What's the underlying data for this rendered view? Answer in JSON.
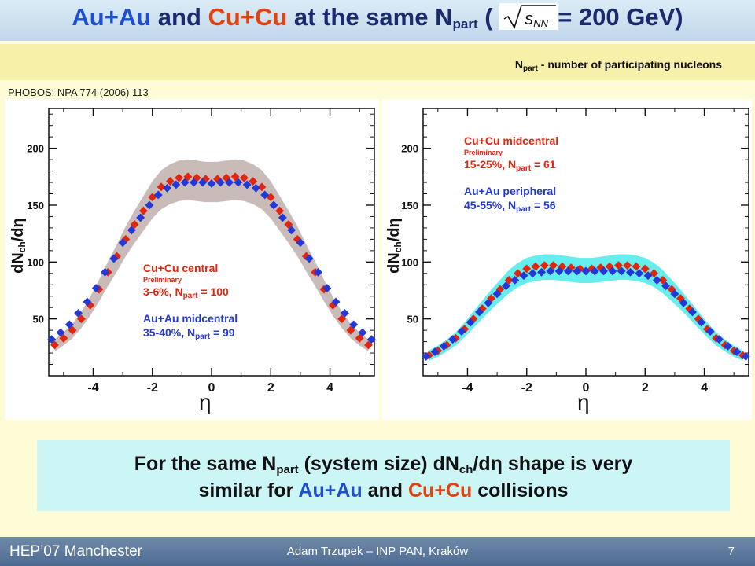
{
  "header": {
    "title_pre": "Au+Au",
    "title_and": "and",
    "title_cu": "Cu+Cu",
    "title_mid": "at the same N",
    "title_sub": "part",
    "title_paren": "(",
    "sqrt_s": "s",
    "sqrt_sub": "NN",
    "title_energy": "= 200 GeV)",
    "npart_note_n": "N",
    "npart_note_sub": "part",
    "npart_note_rest": "- number of participating nucleons",
    "source": "PHOBOS: NPA 774 (2006) 113"
  },
  "left_plot": {
    "ylabel_main": "dN",
    "ylabel_sub": "ch",
    "ylabel_tail": "/dη",
    "xlabel": "η",
    "legend": {
      "red_title": "Cu+Cu central",
      "prelim": "Preliminary",
      "red_cent": "3-6%, N",
      "red_npart_sub": "part",
      "red_npart_val": "= 100",
      "blue_title": "Au+Au midcentral",
      "blue_cent": "35-40%, N",
      "blue_npart_sub": "part",
      "blue_npart_val": "= 99"
    }
  },
  "right_plot": {
    "ylabel_main": "dN",
    "ylabel_sub": "ch",
    "ylabel_tail": "/dη",
    "xlabel": "η",
    "legend": {
      "red_title": "Cu+Cu midcentral",
      "prelim": "Preliminary",
      "red_cent": "15-25%, N",
      "red_npart_sub": "part",
      "red_npart_val": "= 61",
      "blue_title": "Au+Au peripheral",
      "blue_cent": "45-55%, N",
      "blue_npart_sub": "part",
      "blue_npart_val": "= 56"
    }
  },
  "conclusion": {
    "l1_a": "For the same N",
    "l1_sub": "part",
    "l1_b": "(system size) dN",
    "l1_sub2": "ch",
    "l1_c": "/dη shape is very",
    "l2_a": "similar for",
    "l2_au": "Au+Au",
    "l2_and": "and",
    "l2_cu": "Cu+Cu",
    "l2_b": "collisions"
  },
  "footer": {
    "left": "HEP’07 Manchester",
    "center": "Adam Trzupek – INP PAN, Kraków",
    "page": "7"
  },
  "colors": {
    "cu_red": "#e2250f",
    "au_blue": "#2338d6",
    "band_left": "#c9bcb8",
    "band_right": "#66eeee"
  },
  "chart_data": [
    {
      "type": "scatter",
      "xlim": [
        -5.5,
        5.5
      ],
      "ylim": [
        0,
        235
      ],
      "xticks": [
        -4,
        -2,
        0,
        2,
        4
      ],
      "yticks": [
        50,
        100,
        150,
        200
      ],
      "xtick_labels": [
        "-4",
        "-2",
        "0",
        "2",
        "4"
      ],
      "ytick_labels": [
        "50",
        "100",
        "150",
        "200"
      ],
      "series": [
        {
          "name": "Cu+Cu central 3-6%, Npart = 100",
          "color": "#e2250f",
          "x": [
            -5.3,
            -5.0,
            -4.7,
            -4.4,
            -4.1,
            -3.8,
            -3.5,
            -3.2,
            -2.9,
            -2.6,
            -2.3,
            -2.0,
            -1.7,
            -1.4,
            -1.1,
            -0.8,
            -0.5,
            -0.2,
            0.2,
            0.5,
            0.8,
            1.1,
            1.4,
            1.7,
            2.0,
            2.3,
            2.6,
            2.9,
            3.2,
            3.5,
            3.8,
            4.1,
            4.4,
            4.7,
            5.0,
            5.3
          ],
          "y": [
            27,
            33,
            40,
            50,
            62,
            76,
            91,
            105,
            120,
            133,
            145,
            157,
            166,
            171,
            174,
            175,
            174,
            173,
            173,
            174,
            175,
            174,
            171,
            166,
            157,
            145,
            133,
            120,
            105,
            91,
            76,
            62,
            50,
            40,
            33,
            27
          ]
        },
        {
          "name": "Au+Au midcentral 35-40%, Npart = 99",
          "color": "#2338d6",
          "x": [
            -5.4,
            -5.1,
            -4.8,
            -4.5,
            -4.2,
            -3.9,
            -3.6,
            -3.3,
            -3.0,
            -2.7,
            -2.4,
            -2.1,
            -1.8,
            -1.5,
            -1.2,
            -0.9,
            -0.6,
            -0.3,
            0.0,
            0.3,
            0.6,
            0.9,
            1.2,
            1.5,
            1.8,
            2.1,
            2.4,
            2.7,
            3.0,
            3.3,
            3.6,
            3.9,
            4.2,
            4.5,
            4.8,
            5.1,
            5.4
          ],
          "y": [
            32,
            38,
            45,
            55,
            65,
            77,
            91,
            103,
            117,
            128,
            139,
            150,
            159,
            165,
            168,
            170,
            170,
            170,
            169,
            170,
            170,
            170,
            168,
            165,
            159,
            150,
            139,
            128,
            117,
            103,
            91,
            77,
            65,
            55,
            45,
            38,
            32
          ]
        }
      ]
    },
    {
      "type": "scatter",
      "xlim": [
        -5.5,
        5.5
      ],
      "ylim": [
        0,
        235
      ],
      "xticks": [
        -4,
        -2,
        0,
        2,
        4
      ],
      "yticks": [
        50,
        100,
        150,
        200
      ],
      "xtick_labels": [
        "-4",
        "-2",
        "0",
        "2",
        "4"
      ],
      "ytick_labels": [
        "50",
        "100",
        "150",
        "200"
      ],
      "series": [
        {
          "name": "Cu+Cu midcentral 15-25%, Npart = 61",
          "color": "#e2250f",
          "x": [
            -5.3,
            -5.0,
            -4.7,
            -4.4,
            -4.1,
            -3.8,
            -3.5,
            -3.2,
            -2.9,
            -2.6,
            -2.3,
            -2.0,
            -1.7,
            -1.4,
            -1.1,
            -0.8,
            -0.5,
            -0.2,
            0.2,
            0.5,
            0.8,
            1.1,
            1.4,
            1.7,
            2.0,
            2.3,
            2.6,
            2.9,
            3.2,
            3.5,
            3.8,
            4.1,
            4.4,
            4.7,
            5.0,
            5.3
          ],
          "y": [
            18,
            22,
            27,
            33,
            41,
            50,
            59,
            68,
            76,
            84,
            90,
            94,
            96,
            97,
            97,
            96,
            95,
            94,
            94,
            95,
            96,
            97,
            97,
            96,
            94,
            90,
            84,
            76,
            68,
            59,
            50,
            41,
            33,
            27,
            22,
            18
          ]
        },
        {
          "name": "Au+Au peripheral 45-55%, Npart = 56",
          "color": "#2338d6",
          "x": [
            -5.4,
            -5.1,
            -4.8,
            -4.5,
            -4.2,
            -3.9,
            -3.6,
            -3.3,
            -3.0,
            -2.7,
            -2.4,
            -2.1,
            -1.8,
            -1.5,
            -1.2,
            -0.9,
            -0.6,
            -0.3,
            0.0,
            0.3,
            0.6,
            0.9,
            1.2,
            1.5,
            1.8,
            2.1,
            2.4,
            2.7,
            3.0,
            3.3,
            3.6,
            3.9,
            4.2,
            4.5,
            4.8,
            5.1,
            5.4
          ],
          "y": [
            17,
            21,
            26,
            32,
            39,
            47,
            56,
            64,
            72,
            79,
            84,
            88,
            90,
            91,
            92,
            92,
            92,
            92,
            92,
            92,
            92,
            92,
            92,
            91,
            90,
            88,
            84,
            79,
            72,
            64,
            56,
            47,
            39,
            32,
            26,
            21,
            17
          ]
        }
      ]
    }
  ]
}
